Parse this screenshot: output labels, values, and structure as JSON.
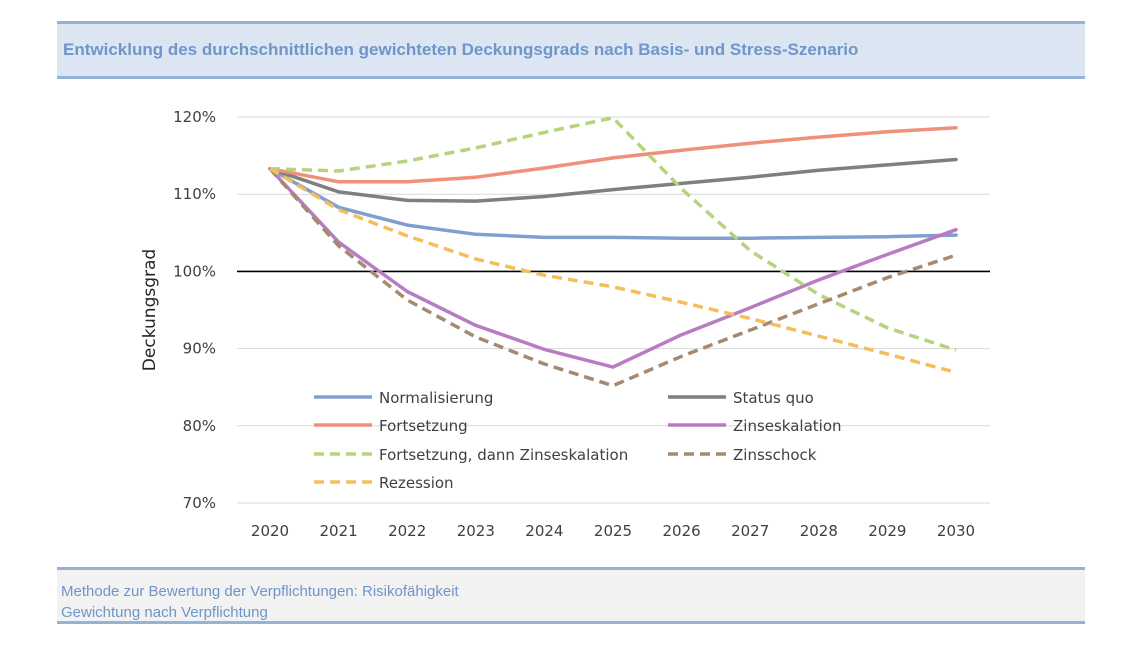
{
  "header": {
    "title": "Entwicklung des durchschnittlichen gewichteten Deckungsgrads nach Basis- und Stress-Szenario"
  },
  "footer": {
    "line1": "Methode zur Bewertung der Verpflichtungen: Risikofähigkeit",
    "line2": "Gewichtung nach Verpflichtung"
  },
  "chart_data": {
    "type": "line",
    "title": "",
    "xlabel": "",
    "ylabel": "Deckungsgrad",
    "x": [
      2020,
      2021,
      2022,
      2023,
      2024,
      2025,
      2026,
      2027,
      2028,
      2029,
      2030
    ],
    "x_tick_labels": [
      "2020",
      "2021",
      "2022",
      "2023",
      "2024",
      "2025",
      "2026",
      "2027",
      "2028",
      "2029",
      "2030"
    ],
    "ylim": [
      70,
      120
    ],
    "y_ticks": [
      70,
      80,
      90,
      100,
      110,
      120
    ],
    "y_tick_labels": [
      "70%",
      "80%",
      "90%",
      "100%",
      "110%",
      "120%"
    ],
    "reference_line": 100,
    "grid": true,
    "legend_position": "inside-lower-center",
    "series": [
      {
        "name": "Normalisierung",
        "color": "#7f9fcf",
        "dash": "solid",
        "values": [
          113.3,
          108.3,
          106.0,
          104.8,
          104.4,
          104.4,
          104.3,
          104.3,
          104.4,
          104.5,
          104.7
        ]
      },
      {
        "name": "Status quo",
        "color": "#7f7f7f",
        "dash": "solid",
        "values": [
          113.3,
          110.3,
          109.2,
          109.1,
          109.7,
          110.6,
          111.4,
          112.2,
          113.1,
          113.8,
          114.5
        ]
      },
      {
        "name": "Fortsetzung",
        "color": "#f0907a",
        "dash": "solid",
        "values": [
          113.3,
          111.6,
          111.6,
          112.2,
          113.4,
          114.7,
          115.7,
          116.6,
          117.4,
          118.1,
          118.6
        ]
      },
      {
        "name": "Zinseskalation",
        "color": "#b87cc2",
        "dash": "solid",
        "values": [
          113.3,
          103.8,
          97.4,
          93.0,
          89.9,
          87.6,
          91.8,
          95.3,
          98.9,
          102.2,
          105.4
        ]
      },
      {
        "name": "Fortsetzung, dann Zinseskalation",
        "color": "#b5d47c",
        "dash": "dashed",
        "values": [
          113.3,
          113.0,
          114.3,
          116.0,
          118.0,
          119.9,
          110.7,
          102.7,
          97.0,
          92.7,
          89.8
        ]
      },
      {
        "name": "Zinsschock",
        "color": "#a68a6f",
        "dash": "dashed",
        "values": [
          113.3,
          103.3,
          96.3,
          91.5,
          88.0,
          85.2,
          89.0,
          92.4,
          95.8,
          99.2,
          102.1
        ]
      },
      {
        "name": "Rezession",
        "color": "#f5bd5c",
        "dash": "dashed",
        "values": [
          113.3,
          108.0,
          104.6,
          101.6,
          99.5,
          98.0,
          96.0,
          93.9,
          91.6,
          89.3,
          86.9
        ]
      }
    ]
  }
}
